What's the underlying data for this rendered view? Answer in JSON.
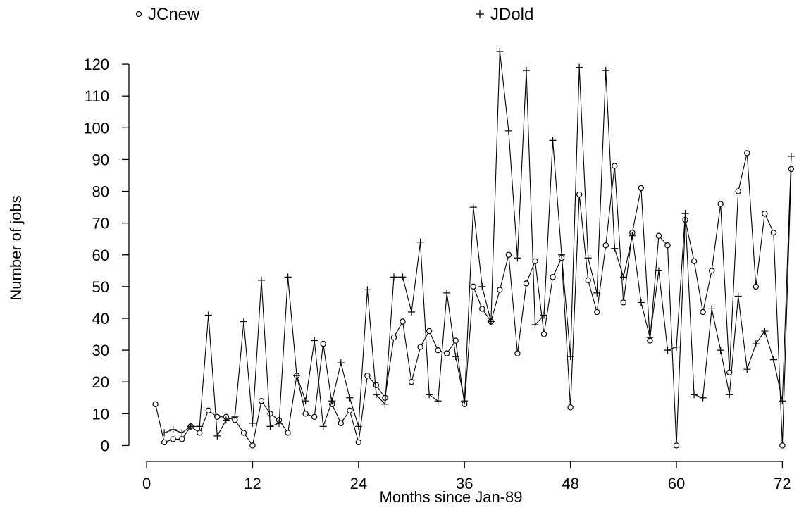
{
  "chart_data": {
    "type": "line",
    "xlabel": "Months since Jan-89",
    "ylabel": "Number of jobs",
    "xlim": [
      -2,
      75
    ],
    "ylim": [
      -5,
      128
    ],
    "xticks": [
      0,
      12,
      24,
      36,
      48,
      60,
      72
    ],
    "yticks": [
      0,
      10,
      20,
      30,
      40,
      50,
      60,
      70,
      80,
      90,
      100,
      110,
      120
    ],
    "grid": false,
    "legend_position": "top",
    "series": [
      {
        "name": "JCnew",
        "marker": "circle",
        "color": "#000000",
        "x": [
          1,
          2,
          3,
          4,
          5,
          6,
          7,
          8,
          9,
          10,
          11,
          12,
          13,
          14,
          15,
          16,
          17,
          18,
          19,
          20,
          21,
          22,
          23,
          24,
          25,
          26,
          27,
          28,
          29,
          30,
          31,
          32,
          33,
          34,
          35,
          36,
          37,
          38,
          39,
          40,
          41,
          42,
          43,
          44,
          45,
          46,
          47,
          48,
          49,
          50,
          51,
          52,
          53,
          54,
          55,
          56,
          57,
          58,
          59,
          60,
          61,
          62,
          63,
          64,
          65,
          66,
          67,
          68,
          69,
          70,
          71,
          72,
          73
        ],
        "y": [
          13,
          1,
          2,
          2,
          6,
          4,
          11,
          9,
          9,
          8,
          4,
          0,
          14,
          10,
          8,
          4,
          22,
          10,
          9,
          32,
          13,
          7,
          11,
          1,
          22,
          19,
          15,
          34,
          39,
          20,
          31,
          36,
          30,
          29,
          33,
          13,
          50,
          43,
          39,
          49,
          60,
          29,
          51,
          58,
          35,
          53,
          59,
          12,
          79,
          52,
          42,
          63,
          88,
          45,
          67,
          81,
          33,
          66,
          63,
          0,
          71,
          58,
          42,
          55,
          76,
          23,
          80,
          92,
          50,
          73,
          67,
          0,
          87
        ]
      },
      {
        "name": "JDold",
        "marker": "plus",
        "color": "#000000",
        "x": [
          2,
          3,
          4,
          5,
          6,
          7,
          8,
          9,
          10,
          11,
          12,
          13,
          14,
          15,
          16,
          17,
          18,
          19,
          20,
          21,
          22,
          23,
          24,
          25,
          26,
          27,
          28,
          29,
          30,
          31,
          32,
          33,
          34,
          35,
          36,
          37,
          38,
          39,
          40,
          41,
          42,
          43,
          44,
          45,
          46,
          47,
          48,
          49,
          50,
          51,
          52,
          53,
          54,
          55,
          56,
          57,
          58,
          59,
          60,
          61,
          62,
          63,
          64,
          65,
          66,
          67,
          68,
          69,
          70,
          71,
          72,
          73
        ],
        "y": [
          4,
          5,
          4,
          6,
          6,
          41,
          3,
          8,
          9,
          39,
          7,
          52,
          6,
          7,
          53,
          22,
          14,
          33,
          6,
          14,
          26,
          15,
          6,
          49,
          16,
          13,
          53,
          53,
          42,
          64,
          16,
          14,
          48,
          28,
          14,
          75,
          50,
          39,
          124,
          99,
          59,
          118,
          38,
          41,
          96,
          60,
          28,
          119,
          59,
          48,
          118,
          62,
          53,
          66,
          45,
          34,
          55,
          30,
          31,
          73,
          16,
          15,
          43,
          30,
          16,
          47,
          24,
          32,
          36,
          27,
          14,
          91
        ]
      }
    ]
  }
}
